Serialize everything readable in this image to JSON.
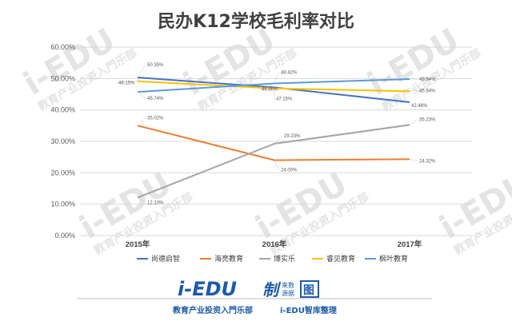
{
  "chart_data": {
    "type": "line",
    "title": "民办K12学校毛利率对比",
    "categories": [
      "2015年",
      "2016年",
      "2017年"
    ],
    "ylim": [
      0,
      60
    ],
    "yticks": [
      "0.00%",
      "10.00%",
      "20.00%",
      "30.00%",
      "40.00%",
      "50.00%",
      "60.00%"
    ],
    "grid": true,
    "legend_position": "bottom",
    "series": [
      {
        "name": "尚德启智",
        "color": "#4472c4",
        "values": [
          50.35,
          47.15,
          42.46
        ],
        "labels": [
          "50.35%",
          "47.15%",
          "42.46%"
        ]
      },
      {
        "name": "海亮教育",
        "color": "#ed7d31",
        "values": [
          35.02,
          24.0,
          24.32
        ],
        "labels": [
          "35.02%",
          "24.00%",
          "24.32%"
        ]
      },
      {
        "name": "博实乐",
        "color": "#a5a5a5",
        "values": [
          12.1,
          29.23,
          35.23
        ],
        "labels": [
          "12.10%",
          "29.23%",
          "35.23%"
        ]
      },
      {
        "name": "睿见教育",
        "color": "#ffc000",
        "values": [
          49.15,
          46.86,
          45.94
        ],
        "labels": [
          "49.15%",
          "46.86%",
          "45.94%"
        ]
      },
      {
        "name": "枫叶教育",
        "color": "#5b9bd5",
        "values": [
          45.74,
          48.42,
          49.84
        ],
        "labels": [
          "45.74%",
          "48.42%",
          "49.84%"
        ]
      }
    ]
  },
  "watermark": {
    "logo": "i-EDU",
    "tagline": "教育产业投资入門乐部"
  },
  "footer": {
    "logo": "i-EDU",
    "brand_char": "制",
    "brand_small_top": "来数",
    "brand_small_bottom": "源据",
    "brand_icon_char": "图",
    "tagline_left": "教育产业投资入門乐部",
    "tagline_right": "i-EDU智库整理"
  }
}
